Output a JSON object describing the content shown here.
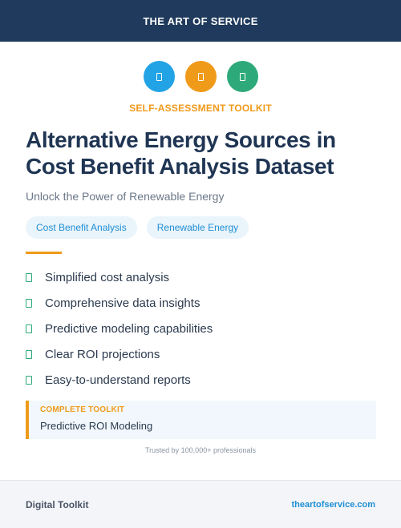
{
  "header": {
    "title": "THE ART OF SERVICE"
  },
  "icons": [
    {
      "name": "document-icon",
      "color": "#22a3e6"
    },
    {
      "name": "document-icon",
      "color": "#f09a1a"
    },
    {
      "name": "document-icon",
      "color": "#2eaa7a"
    }
  ],
  "kicker": "SELF-ASSESSMENT TOOLKIT",
  "title": "Alternative Energy Sources in Cost Benefit Analysis Dataset",
  "subtitle": "Unlock the Power of Renewable Energy",
  "tags": [
    "Cost Benefit Analysis",
    "Renewable Energy"
  ],
  "features": [
    "Simplified cost analysis",
    "Comprehensive data insights",
    "Predictive modeling capabilities",
    "Clear ROI projections",
    "Easy-to-understand reports"
  ],
  "callout": {
    "label": "COMPLETE TOOLKIT",
    "text": "Predictive ROI Modeling"
  },
  "trusted": "Trusted by 100,000+ professionals",
  "footer": {
    "left": "Digital Toolkit",
    "right": "theartofservice.com"
  }
}
